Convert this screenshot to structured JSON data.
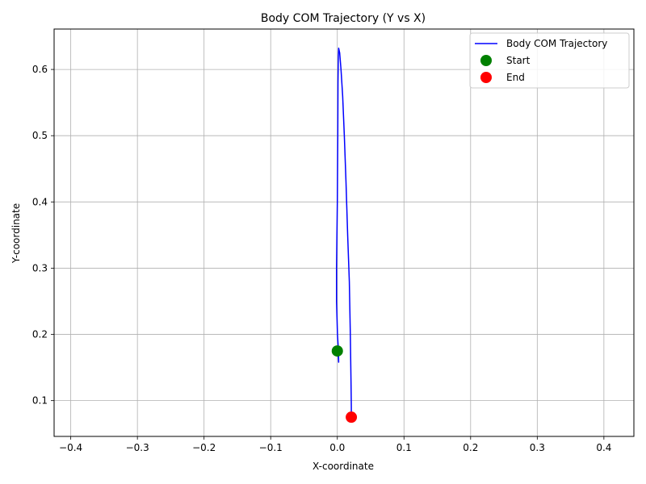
{
  "chart_data": {
    "type": "line",
    "title": "Body COM Trajectory (Y vs X)",
    "xlabel": "X-coordinate",
    "ylabel": "Y-coordinate",
    "xlim": [
      -0.425,
      0.445
    ],
    "ylim": [
      0.046,
      0.661
    ],
    "xticks": [
      -0.4,
      -0.3,
      -0.2,
      -0.1,
      0.0,
      0.1,
      0.2,
      0.3,
      0.4
    ],
    "xtick_labels": [
      "−0.4",
      "−0.3",
      "−0.2",
      "−0.1",
      "0.0",
      "0.1",
      "0.2",
      "0.3",
      "0.4"
    ],
    "yticks": [
      0.1,
      0.2,
      0.3,
      0.4,
      0.5,
      0.6
    ],
    "ytick_labels": [
      "0.1",
      "0.2",
      "0.3",
      "0.4",
      "0.5",
      "0.6"
    ],
    "grid": true,
    "legend_position": "top-right",
    "colors": {
      "trajectory": "#0000ff",
      "start": "#008000",
      "end": "#ff0000",
      "grid": "#b0b0b0"
    },
    "series": [
      {
        "name": "Body COM Trajectory",
        "x": [
          0.001,
          0.002,
          0.0017,
          0.0002,
          -0.0012,
          -0.0012,
          0.0,
          0.0007,
          0.001,
          0.0015,
          0.002,
          0.0035,
          0.0055,
          0.008,
          0.0105,
          0.013,
          0.0155,
          0.018,
          0.0195,
          0.0205,
          0.021,
          0.021
        ],
        "y": [
          0.175,
          0.158,
          0.175,
          0.2,
          0.25,
          0.3,
          0.4,
          0.5,
          0.58,
          0.62,
          0.632,
          0.625,
          0.6,
          0.56,
          0.5,
          0.43,
          0.35,
          0.28,
          0.2,
          0.13,
          0.09,
          0.075
        ]
      }
    ],
    "markers": [
      {
        "name": "Start",
        "x": 0.0,
        "y": 0.175
      },
      {
        "name": "End",
        "x": 0.021,
        "y": 0.075
      }
    ]
  }
}
